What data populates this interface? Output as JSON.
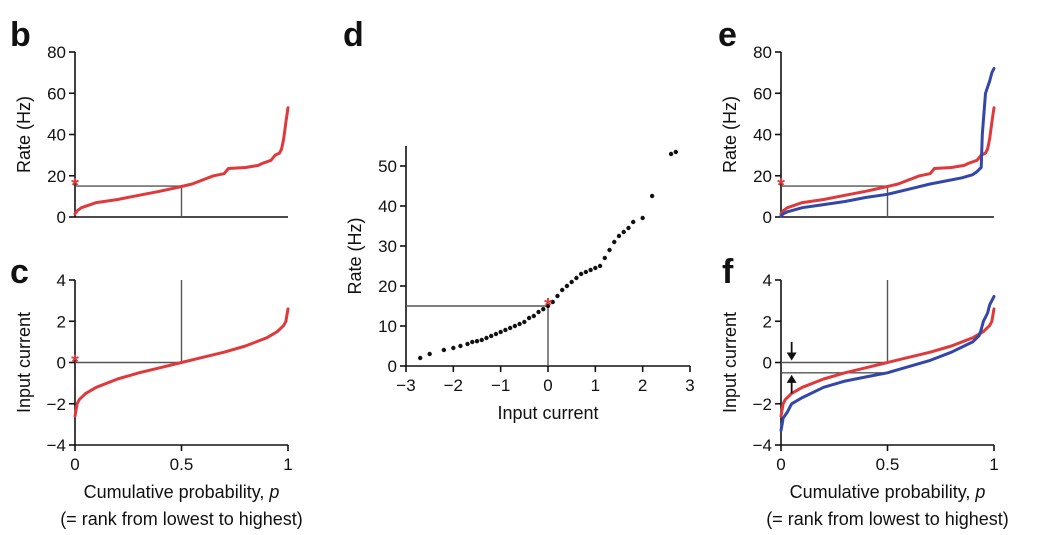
{
  "colors": {
    "red": "#e0393b",
    "blue": "#3347a8",
    "black": "#111111",
    "guide": "#555555"
  },
  "chart_data": [
    {
      "panel": "b",
      "type": "line",
      "xlim": [
        0,
        1
      ],
      "ylim": [
        0,
        80
      ],
      "xticks": [],
      "yticks": [
        0,
        20,
        40,
        60,
        80
      ],
      "xlabel": "",
      "ylabel": "Rate (Hz)",
      "series": [
        {
          "color": "red",
          "x": [
            0,
            0.01,
            0.03,
            0.1,
            0.2,
            0.3,
            0.4,
            0.5,
            0.55,
            0.6,
            0.65,
            0.7,
            0.72,
            0.8,
            0.86,
            0.88,
            0.92,
            0.94,
            0.96,
            0.97,
            0.98,
            0.99,
            1.0
          ],
          "values": [
            1.5,
            3,
            4.5,
            7,
            8.5,
            10.5,
            12.5,
            14.8,
            16,
            18,
            20,
            21,
            23.5,
            24,
            25,
            26,
            27.5,
            30,
            31,
            33,
            38,
            46,
            53
          ]
        }
      ],
      "guides": [
        {
          "x": [
            0,
            0.5
          ],
          "y": [
            15,
            15
          ]
        },
        {
          "x": [
            0.5,
            0.5
          ],
          "y": [
            15,
            0
          ]
        }
      ],
      "marker": {
        "x": 0,
        "y": 15,
        "symbol": "*",
        "color": "red"
      }
    },
    {
      "panel": "c",
      "type": "line",
      "xlim": [
        0,
        1
      ],
      "ylim": [
        -4,
        4
      ],
      "xticks": [
        0,
        0.5,
        1
      ],
      "xtick_labels": [
        "0",
        "0.5",
        "1"
      ],
      "yticks": [
        -4,
        -2,
        0,
        2,
        4
      ],
      "xlabel": "Cumulative probability, p",
      "xlabel2": "(= rank from lowest to highest)",
      "ylabel": "Input current",
      "series": [
        {
          "color": "red",
          "x": [
            0,
            0.005,
            0.01,
            0.02,
            0.05,
            0.1,
            0.2,
            0.3,
            0.4,
            0.5,
            0.6,
            0.7,
            0.8,
            0.9,
            0.95,
            0.98,
            0.99,
            0.995,
            1.0
          ],
          "values": [
            -2.6,
            -2.3,
            -2.0,
            -1.8,
            -1.5,
            -1.2,
            -0.8,
            -0.5,
            -0.25,
            0,
            0.25,
            0.5,
            0.8,
            1.2,
            1.5,
            1.8,
            2.0,
            2.3,
            2.6
          ]
        }
      ],
      "guides": [
        {
          "x": [
            0,
            0.5
          ],
          "y": [
            0,
            0
          ]
        },
        {
          "x": [
            0.5,
            0.5
          ],
          "y": [
            0,
            4
          ]
        }
      ],
      "marker": {
        "x": 0,
        "y": 0,
        "symbol": "*",
        "color": "red"
      }
    },
    {
      "panel": "d",
      "type": "scatter",
      "xlim": [
        -3,
        3
      ],
      "ylim": [
        0,
        55
      ],
      "xticks": [
        -3,
        -2,
        -1,
        0,
        1,
        2,
        3
      ],
      "xtick_labels": [
        "−3",
        "−2",
        "−1",
        "0",
        "1",
        "2",
        "3"
      ],
      "yticks": [
        0,
        10,
        20,
        30,
        40,
        50
      ],
      "xlabel": "Input current",
      "ylabel": "Rate (Hz)",
      "points": {
        "x": [
          -2.7,
          -2.5,
          -2.2,
          -2.0,
          -1.85,
          -1.7,
          -1.6,
          -1.5,
          -1.4,
          -1.3,
          -1.2,
          -1.1,
          -1.0,
          -0.9,
          -0.8,
          -0.7,
          -0.6,
          -0.5,
          -0.4,
          -0.3,
          -0.2,
          -0.1,
          0.0,
          0.1,
          0.2,
          0.3,
          0.4,
          0.5,
          0.6,
          0.7,
          0.8,
          0.9,
          1.0,
          1.1,
          1.2,
          1.3,
          1.4,
          1.5,
          1.6,
          1.7,
          1.8,
          2.0,
          2.2,
          2.6,
          2.7
        ],
        "values": [
          2,
          3,
          4,
          4.5,
          5,
          5.5,
          6,
          6.2,
          6.5,
          7,
          7.5,
          8,
          8.5,
          9,
          9.5,
          10,
          10.5,
          11,
          12,
          12.5,
          13.5,
          14.2,
          15,
          16,
          17.5,
          19,
          20,
          21,
          22,
          23,
          23.5,
          24,
          24.5,
          25,
          27,
          29,
          31,
          32.5,
          33.5,
          34.5,
          36,
          37,
          42.5,
          53,
          53.5
        ]
      },
      "guides": [
        {
          "x": [
            -3,
            0
          ],
          "y": [
            15,
            15
          ]
        },
        {
          "x": [
            0,
            0
          ],
          "y": [
            15,
            0
          ]
        }
      ],
      "marker": {
        "x": 0,
        "y": 15,
        "symbol": "*",
        "color": "red"
      }
    },
    {
      "panel": "e",
      "type": "line",
      "xlim": [
        0,
        1
      ],
      "ylim": [
        0,
        80
      ],
      "xticks": [],
      "yticks": [
        0,
        20,
        40,
        60,
        80
      ],
      "xlabel": "",
      "ylabel": "Rate (Hz)",
      "series": [
        {
          "color": "red",
          "x": [
            0,
            0.01,
            0.03,
            0.1,
            0.2,
            0.3,
            0.4,
            0.5,
            0.55,
            0.6,
            0.65,
            0.7,
            0.72,
            0.8,
            0.86,
            0.88,
            0.92,
            0.94,
            0.96,
            0.97,
            0.98,
            0.99,
            1.0
          ],
          "values": [
            1.5,
            3,
            4.5,
            7,
            8.5,
            10.5,
            12.5,
            14.8,
            16,
            18,
            20,
            21,
            23.5,
            24,
            25,
            26,
            27.5,
            30,
            31,
            33,
            38,
            46,
            53
          ]
        },
        {
          "color": "blue",
          "x": [
            0,
            0.01,
            0.03,
            0.1,
            0.2,
            0.3,
            0.4,
            0.5,
            0.6,
            0.7,
            0.8,
            0.85,
            0.9,
            0.92,
            0.94,
            0.945,
            0.96,
            0.98,
            0.99,
            1.0
          ],
          "values": [
            0.5,
            1.5,
            2.5,
            4.5,
            6,
            7.5,
            9.5,
            11,
            13.5,
            16,
            18,
            19,
            20.5,
            22,
            24,
            40,
            60,
            66,
            70,
            72
          ]
        }
      ],
      "guides": [
        {
          "x": [
            0,
            0.5
          ],
          "y": [
            15,
            15
          ]
        },
        {
          "x": [
            0.5,
            0.5
          ],
          "y": [
            15,
            0
          ]
        }
      ],
      "marker": {
        "x": 0,
        "y": 15,
        "symbol": "*",
        "color": "red"
      }
    },
    {
      "panel": "f",
      "type": "line",
      "xlim": [
        0,
        1
      ],
      "ylim": [
        -4,
        4
      ],
      "xticks": [
        0,
        0.5,
        1
      ],
      "xtick_labels": [
        "0",
        "0.5",
        "1"
      ],
      "yticks": [
        -4,
        -2,
        0,
        2,
        4
      ],
      "xlabel": "Cumulative probability, p",
      "xlabel2": "(= rank from lowest to highest)",
      "ylabel": "Input current",
      "series": [
        {
          "color": "red",
          "x": [
            0,
            0.005,
            0.01,
            0.02,
            0.05,
            0.1,
            0.2,
            0.3,
            0.4,
            0.5,
            0.6,
            0.7,
            0.8,
            0.9,
            0.95,
            0.98,
            0.99,
            0.995,
            1.0
          ],
          "values": [
            -2.6,
            -2.3,
            -2.0,
            -1.8,
            -1.5,
            -1.2,
            -0.8,
            -0.5,
            -0.25,
            0,
            0.25,
            0.5,
            0.8,
            1.2,
            1.5,
            1.8,
            2.0,
            2.3,
            2.6
          ]
        },
        {
          "color": "blue",
          "x": [
            0,
            0.005,
            0.01,
            0.03,
            0.05,
            0.1,
            0.2,
            0.3,
            0.4,
            0.5,
            0.6,
            0.7,
            0.8,
            0.9,
            0.93,
            0.94,
            0.95,
            0.97,
            0.98,
            1.0
          ],
          "values": [
            -3.3,
            -3.0,
            -2.7,
            -2.4,
            -2.0,
            -1.7,
            -1.2,
            -0.9,
            -0.7,
            -0.5,
            -0.2,
            0.1,
            0.5,
            1.0,
            1.3,
            1.6,
            2.0,
            2.4,
            2.8,
            3.2
          ]
        }
      ],
      "guides": [
        {
          "x": [
            0,
            0.5
          ],
          "y": [
            0,
            0
          ]
        },
        {
          "x": [
            0.5,
            0.5
          ],
          "y": [
            0,
            4
          ]
        },
        {
          "x": [
            0,
            0.5
          ],
          "y": [
            -0.5,
            -0.5
          ]
        }
      ],
      "arrows": [
        {
          "x": 0.05,
          "from": 1.0,
          "to": 0.1
        },
        {
          "x": 0.05,
          "from": -1.5,
          "to": -0.6
        }
      ]
    }
  ]
}
